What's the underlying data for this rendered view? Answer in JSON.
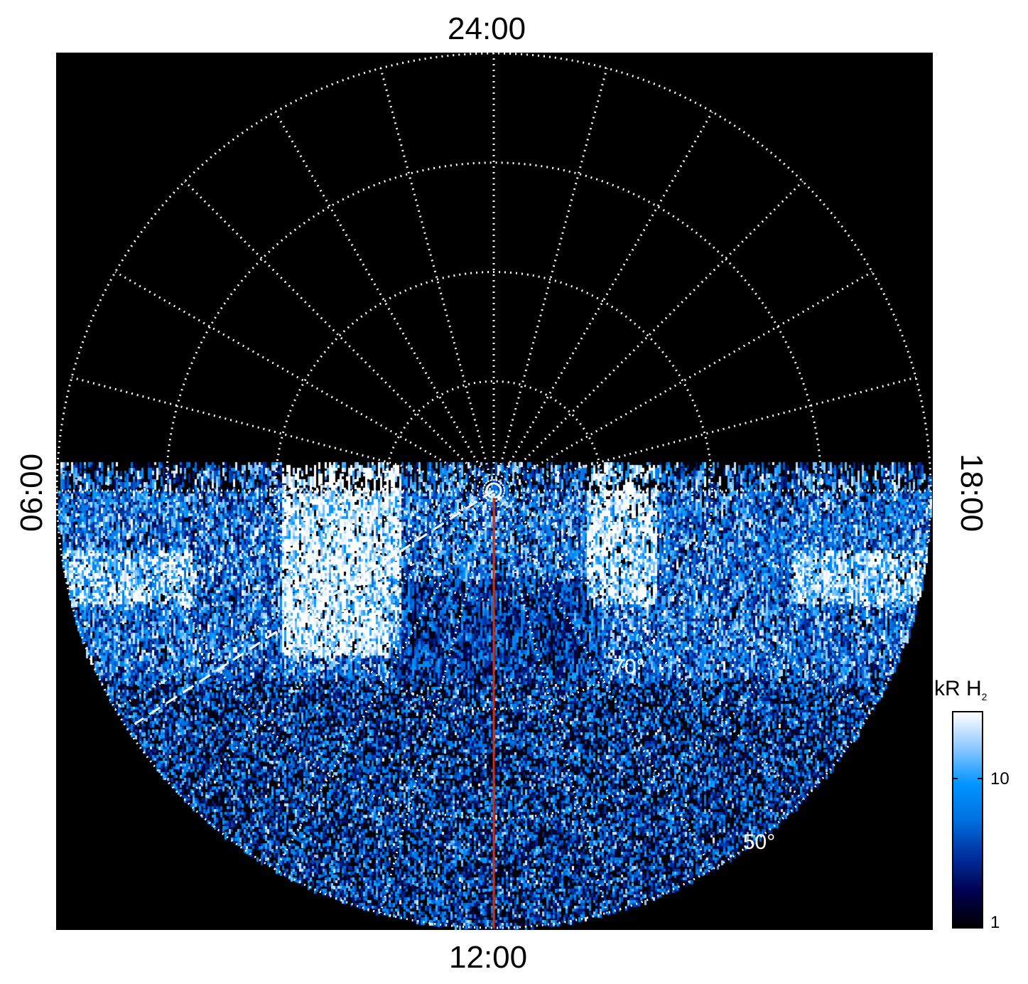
{
  "chart_data": {
    "type": "heatmap",
    "projection": "polar (north-pole-centered, local time vs latitude)",
    "local_time_labels": {
      "top": "24:00",
      "bottom": "12:00",
      "left": "06:00",
      "right": "18:00"
    },
    "latitude_rings_deg": [
      80,
      70,
      60,
      50
    ],
    "latitude_labels": [
      "70°",
      "50°"
    ],
    "meridian_step_hours": 1,
    "grid": true,
    "grid_style": "white dotted",
    "colorbar": {
      "title": "kR H",
      "title_subscript": "2",
      "scale": "log",
      "range": [
        1,
        28
      ],
      "tick_labels": [
        "1",
        "10"
      ],
      "tick_values": [
        1,
        10
      ],
      "colors": [
        "#000000",
        "#000050",
        "#0030a0",
        "#0070e0",
        "#0095ff",
        "#8cc8ff",
        "#ffffff"
      ],
      "placement": "right"
    },
    "annotations": {
      "red_meridian_lt": "12:00",
      "red_line_color": "#d03010",
      "dashed_white_meridian_lt": 8.2
    },
    "data_coverage": "dayside hemisphere (06:00–12:00–18:00) only; nightside empty"
  }
}
